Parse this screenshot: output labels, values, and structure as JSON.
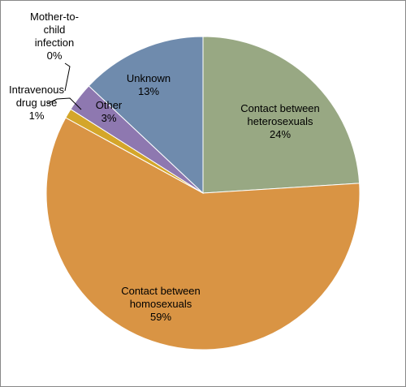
{
  "chart_data": {
    "type": "pie",
    "categories": [
      "Contact between heterosexuals",
      "Contact between homosexuals",
      "Intravenous drug use",
      "Mother-to-child infection",
      "Other",
      "Unknown"
    ],
    "values": [
      24,
      59,
      1,
      0,
      3,
      13
    ],
    "value_labels": [
      "24%",
      "59%",
      "1%",
      "0%",
      "3%",
      "13%"
    ],
    "colors": [
      "#98a883",
      "#d99444",
      "#d4a62a",
      "#c0504d",
      "#8e78b0",
      "#6f8bad"
    ]
  }
}
